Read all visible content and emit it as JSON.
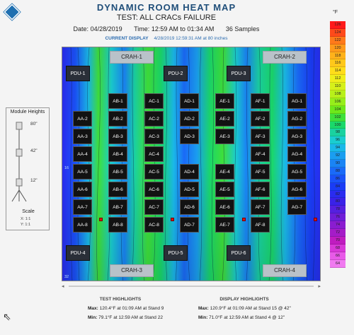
{
  "header": {
    "title": "DYNAMIC ROOM HEAT MAP",
    "subtitle": "TEST: ALL CRACs FAILURE",
    "date_label": "Date:",
    "date": "04/28/2019",
    "time_label": "Time:",
    "time": "12:59 AM to 01:34 AM",
    "samples": "36 Samples",
    "current_label": "CURRENT DISPLAY",
    "current_value": "4/28/2019 12:59:31 AM at 80 inches"
  },
  "crahs": [
    {
      "label": "CRAH-1"
    },
    {
      "label": "CRAH-2"
    },
    {
      "label": "CRAH-3"
    },
    {
      "label": "CRAH-4"
    }
  ],
  "pdus": [
    {
      "label": "PDU-1"
    },
    {
      "label": "PDU-2"
    },
    {
      "label": "PDU-3"
    },
    {
      "label": "PDU-4"
    },
    {
      "label": "PDU-5"
    },
    {
      "label": "PDU-6"
    }
  ],
  "racks": {
    "AA": [
      "AA-2",
      "AA-3",
      "AA-4",
      "AA-5",
      "AA-6",
      "AA-7",
      "AA-8"
    ],
    "AB": [
      "AB-1",
      "AB-2",
      "AB-3",
      "AB-4",
      "AB-5",
      "AB-6",
      "AB-7",
      "AB-8"
    ],
    "AC": [
      "AC-1",
      "AC-2",
      "AC-3",
      "AC-4",
      "AC-5",
      "AC-6",
      "AC-7",
      "AC-8"
    ],
    "AD": [
      "AD-1",
      "AD-2",
      "AD-3",
      "AD-4",
      "AD-5",
      "AD-6",
      "AD-7"
    ],
    "AE": [
      "AE-1",
      "AE-2",
      "AE-3",
      "AE-4",
      "AE-5",
      "AE-6",
      "AE-7"
    ],
    "AF": [
      "AF-1",
      "AF-2",
      "AF-3",
      "AF-4",
      "AF-5",
      "AF-6",
      "AF-7",
      "AF-8"
    ],
    "AG": [
      "AG-1",
      "AG-2",
      "AG-3",
      "AG-4",
      "AG-5",
      "AG-6",
      "AG-7"
    ]
  },
  "stand_numbers": [
    "16",
    "32"
  ],
  "module_heights": {
    "title": "Module Heights",
    "heights": [
      "80\"",
      "42\"",
      "12\""
    ],
    "scale_label": "Scale",
    "x_scale": "X:  1:1",
    "y_scale": "Y:  1:1"
  },
  "legend": {
    "unit": "°F",
    "values": [
      "126",
      "124",
      "122",
      "120",
      "118",
      "116",
      "114",
      "112",
      "110",
      "108",
      "106",
      "104",
      "102",
      "100",
      "98",
      "96",
      "94",
      "92",
      "90",
      "88",
      "86",
      "84",
      "82",
      "80",
      "78",
      "76",
      "74",
      "72",
      "70",
      "68",
      "66",
      "64"
    ],
    "colors": [
      "#ff1a1a",
      "#ff4a1a",
      "#ff7a1a",
      "#ff9a1a",
      "#ffb21a",
      "#ffc81a",
      "#ffdd1a",
      "#f0ee1a",
      "#d6f01a",
      "#b8f01a",
      "#96ee1a",
      "#6ee81a",
      "#3fe03a",
      "#1ad86a",
      "#1ad2a0",
      "#1acdd0",
      "#1ab8e8",
      "#1a9ef0",
      "#1a84f5",
      "#1a6af8",
      "#1a52f8",
      "#1a3cf5",
      "#2a2cf0",
      "#3a22e8",
      "#5520e0",
      "#6f1ed8",
      "#8a1cd0",
      "#a51cc8",
      "#c01cc0",
      "#d838d8",
      "#e85ae8",
      "#f07af0"
    ]
  },
  "test_highlights": {
    "title": "TEST HIGHLIGHTS",
    "max_label": "Max:",
    "max_value": "120.4°F at 01:09 AM at Stand 9",
    "min_label": "Min:",
    "min_value": "79.1°F at 12:59 AM at Stand 22"
  },
  "display_highlights": {
    "title": "DISPLAY HIGHLIGHTS",
    "max_label": "Max:",
    "max_value": "120.9°F at 01:09 AM at Stand 15 @ 42\"",
    "min_label": "Min:",
    "min_value": "71.0°F at 12:59 AM at Stand 4 @ 12\""
  }
}
